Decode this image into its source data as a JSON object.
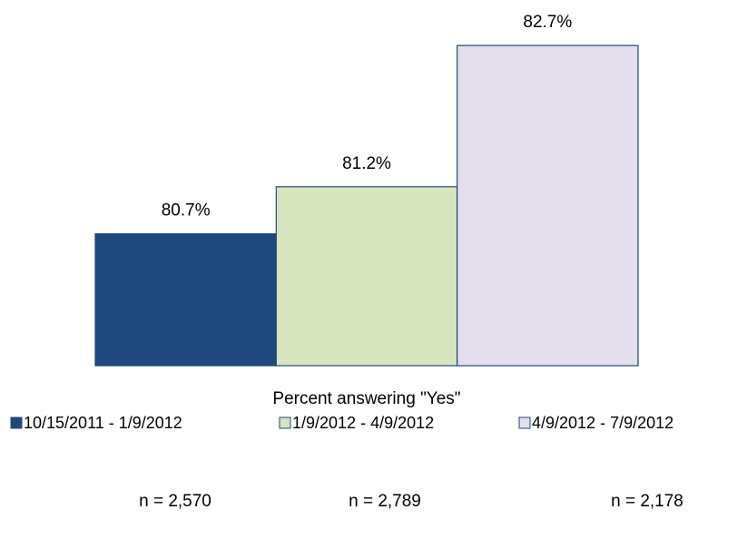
{
  "chart_data": {
    "type": "bar",
    "categories": [
      "Percent answering \"Yes\""
    ],
    "series": [
      {
        "name": "10/15/2011 - 1/9/2012",
        "color": "#1f497d",
        "values": [
          80.7
        ],
        "value_labels": [
          "80.7%"
        ]
      },
      {
        "name": "1/9/2012 - 4/9/2012",
        "color": "#d7e4bd",
        "values": [
          81.2
        ],
        "value_labels": [
          "81.2%"
        ]
      },
      {
        "name": "4/9/2012 - 7/9/2012",
        "color": "#e4dfec",
        "values": [
          82.7
        ],
        "value_labels": [
          "82.7%"
        ]
      }
    ],
    "ylim": [
      79.3,
      83
    ],
    "border_color": "#1f497d",
    "legend": "bottom",
    "annotations": [
      "n = 2,570",
      "n = 2,789",
      "n = 2,178"
    ]
  }
}
